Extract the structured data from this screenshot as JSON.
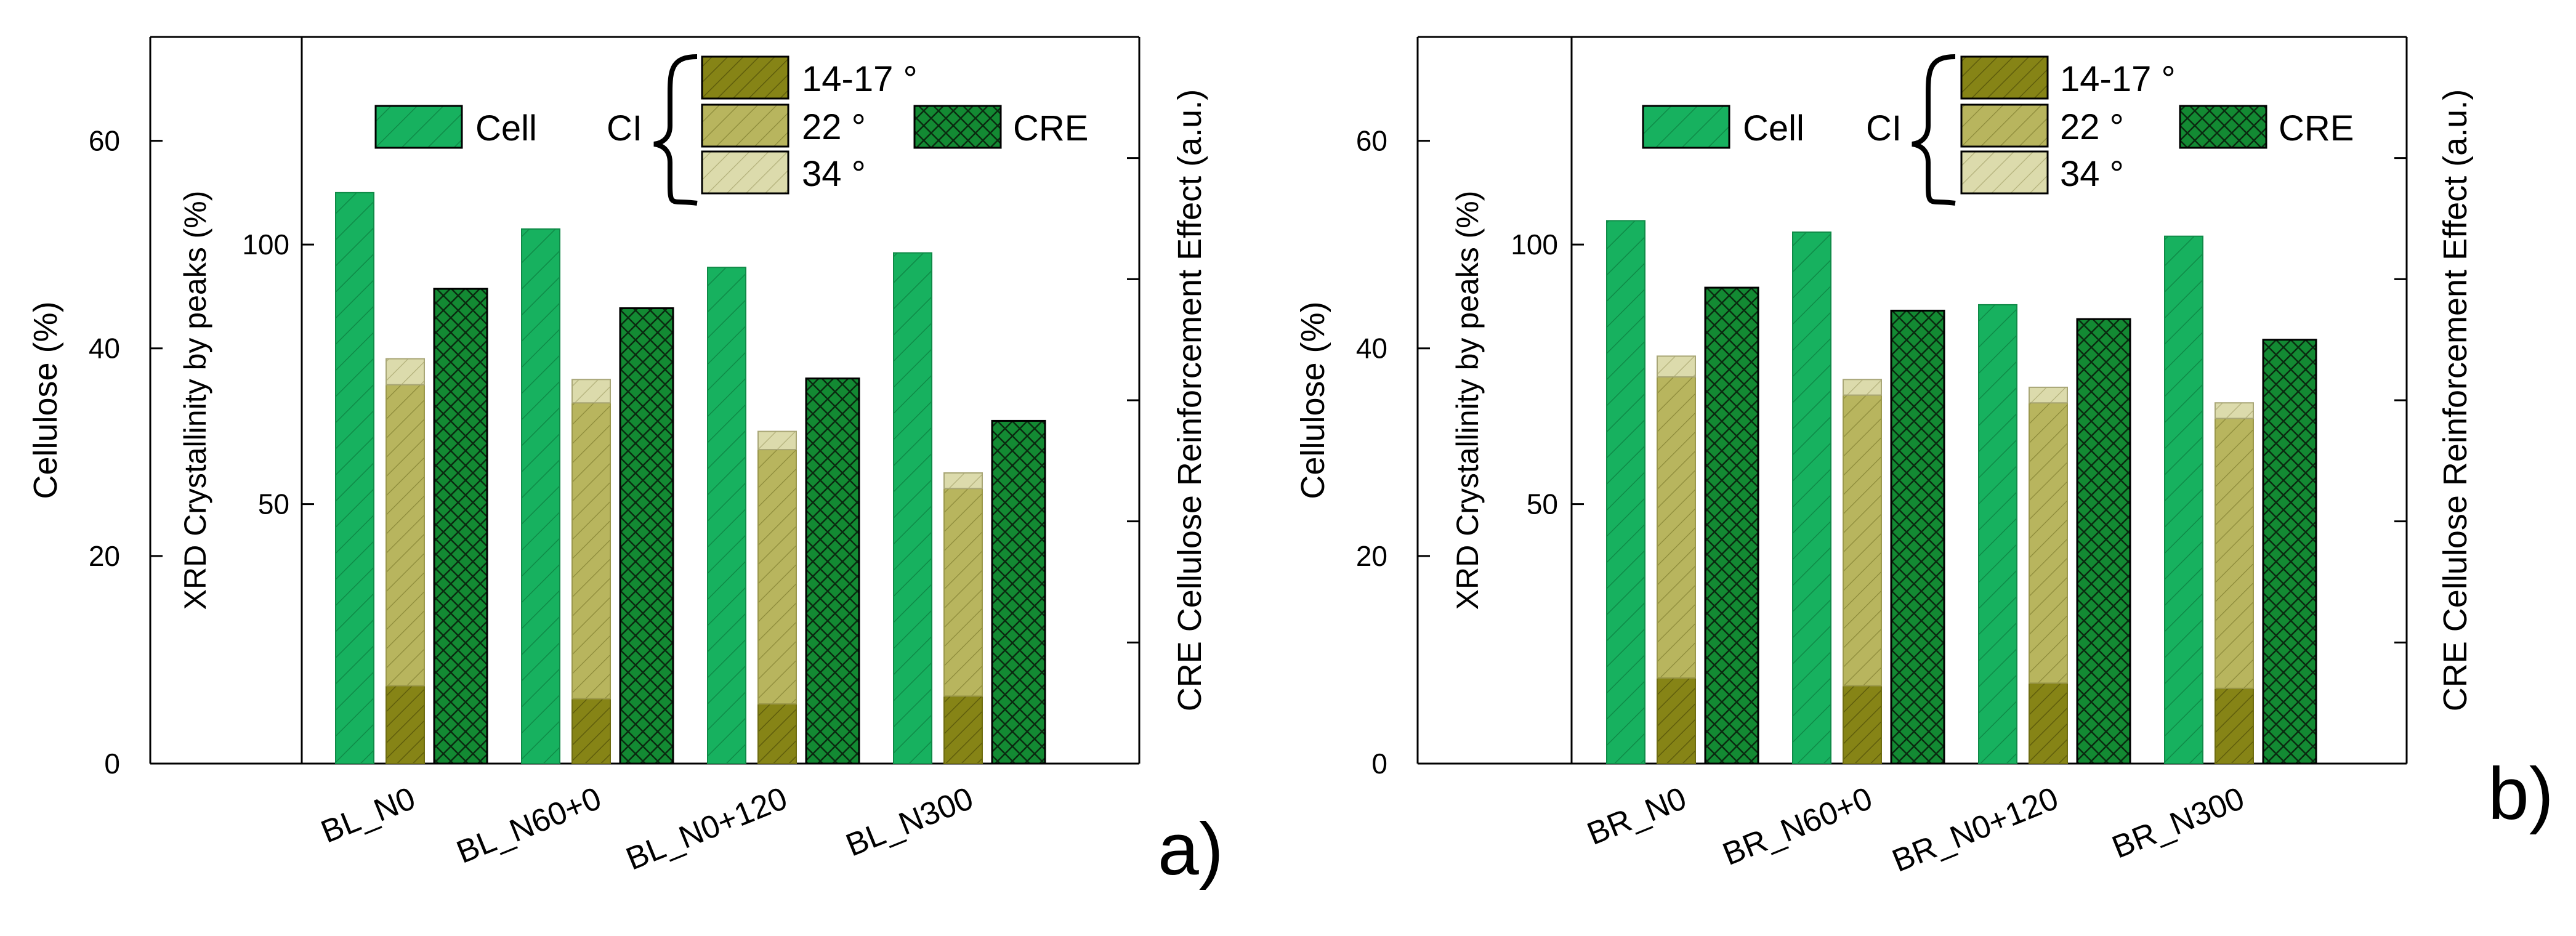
{
  "colors": {
    "cell": "#17b15f",
    "cell_line": "#0f8a47",
    "ci_14_17": "#868416",
    "ci_22": "#b8b55e",
    "ci_34": "#dcdbac",
    "cre": "#138a33",
    "axis": "#000000"
  },
  "legend": {
    "cell": "Cell",
    "ci": "CI",
    "ci_14_17": "14-17 °",
    "ci_22": "22 °",
    "ci_34": "34 °",
    "cre": "CRE"
  },
  "chart_data": [
    {
      "type": "bar",
      "panel_label": "a)",
      "categories": [
        "BL_N0",
        "BL_N60+0",
        "BL_N0+120",
        "BL_N300"
      ],
      "y_left_outer": {
        "label": "Cellulose (%)",
        "lim": [
          0,
          70
        ],
        "ticks": [
          0,
          20,
          40,
          60
        ]
      },
      "y_left_inner": {
        "label": "XRD Crystallinity by peaks (%)",
        "lim": [
          0,
          140
        ],
        "ticks": [
          50,
          100
        ]
      },
      "y_right": {
        "label": "CRE Cellulose Reinforcement Effect (a.u.)",
        "lim": [
          0,
          6
        ],
        "tick_count": 5
      },
      "series": [
        {
          "name": "Cell",
          "axis": "Cellulose (%)",
          "values": [
            55.0,
            51.5,
            47.8,
            49.2
          ]
        },
        {
          "name": "14-17 °",
          "axis": "XRD Crystallinity by peaks (%)",
          "values": [
            15.0,
            12.5,
            11.5,
            13.0
          ]
        },
        {
          "name": "22 °",
          "axis": "XRD Crystallinity by peaks (%)",
          "values": [
            58.0,
            57.0,
            49.0,
            40.0
          ]
        },
        {
          "name": "34 °",
          "axis": "XRD Crystallinity by peaks (%)",
          "values": [
            5.0,
            4.5,
            3.5,
            3.0
          ]
        },
        {
          "name": "CRE",
          "axis": "CRE Cellulose Reinforcement Effect (a.u.)",
          "values": [
            3.92,
            3.76,
            3.18,
            2.83
          ]
        }
      ]
    },
    {
      "type": "bar",
      "panel_label": "b)",
      "categories": [
        "BR_N0",
        "BR_N60+0",
        "BR_N0+120",
        "BR_N300"
      ],
      "y_left_outer": {
        "label": "Cellulose (%)",
        "lim": [
          0,
          70
        ],
        "ticks": [
          0,
          20,
          40,
          60
        ]
      },
      "y_left_inner": {
        "label": "XRD Crystallinity by peaks (%)",
        "lim": [
          0,
          140
        ],
        "ticks": [
          50,
          100
        ]
      },
      "y_right": {
        "label": "CRE Cellulose Reinforcement Effect (a.u.)",
        "lim": [
          0,
          6
        ],
        "tick_count": 5
      },
      "series": [
        {
          "name": "Cell",
          "axis": "Cellulose (%)",
          "values": [
            52.3,
            51.2,
            44.2,
            50.8
          ]
        },
        {
          "name": "14-17 °",
          "axis": "XRD Crystallinity by peaks (%)",
          "values": [
            16.5,
            15.0,
            15.5,
            14.5
          ]
        },
        {
          "name": "22 °",
          "axis": "XRD Crystallinity by peaks (%)",
          "values": [
            58.0,
            56.0,
            54.0,
            52.0
          ]
        },
        {
          "name": "34 °",
          "axis": "XRD Crystallinity by peaks (%)",
          "values": [
            4.0,
            3.0,
            3.0,
            3.0
          ]
        },
        {
          "name": "CRE",
          "axis": "CRE Cellulose Reinforcement Effect (a.u.)",
          "values": [
            3.93,
            3.74,
            3.67,
            3.5
          ]
        }
      ]
    }
  ]
}
